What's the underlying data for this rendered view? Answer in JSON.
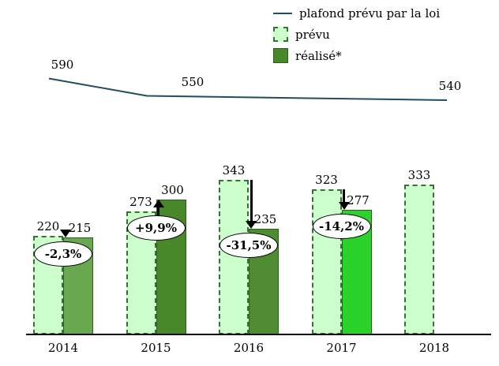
{
  "chart_data": {
    "type": "bar",
    "categories": [
      "2014",
      "2015",
      "2016",
      "2017",
      "2018"
    ],
    "series": [
      {
        "name": "prévu",
        "values": [
          220,
          273,
          343,
          323,
          333
        ]
      },
      {
        "name": "réalisé*",
        "values": [
          215,
          300,
          235,
          277,
          null
        ]
      }
    ],
    "line_series": {
      "name": "plafond prévu par la loi",
      "anchors": [
        "2014",
        "2015",
        "2018"
      ],
      "values": [
        590,
        550,
        540
      ]
    },
    "deltas": [
      {
        "label": "-2,3%",
        "direction": "down"
      },
      {
        "label": "+9,9%",
        "direction": "up"
      },
      {
        "label": "-31,5%",
        "direction": "down"
      },
      {
        "label": "-14,2%",
        "direction": "down"
      },
      null
    ],
    "ylim": [
      0,
      640
    ],
    "grid": false,
    "legend_position": "top-right",
    "colors": {
      "prevu_fill": "#ccffcc",
      "prevu_border": "#3c6e3c",
      "realise_fill_by_year": [
        "#69a84f",
        "#49872b",
        "#4e8b31",
        "#2ad22a",
        null
      ],
      "realise_border": "#2c5e1e",
      "line": "#1f4e5e",
      "arrow": "#000000"
    }
  },
  "legend": {
    "items": [
      {
        "label": "plafond prévu par la loi",
        "swatch": "line"
      },
      {
        "label": "prévu",
        "swatch": "prevu"
      },
      {
        "label": "réalisé*",
        "swatch": "realise"
      }
    ]
  }
}
